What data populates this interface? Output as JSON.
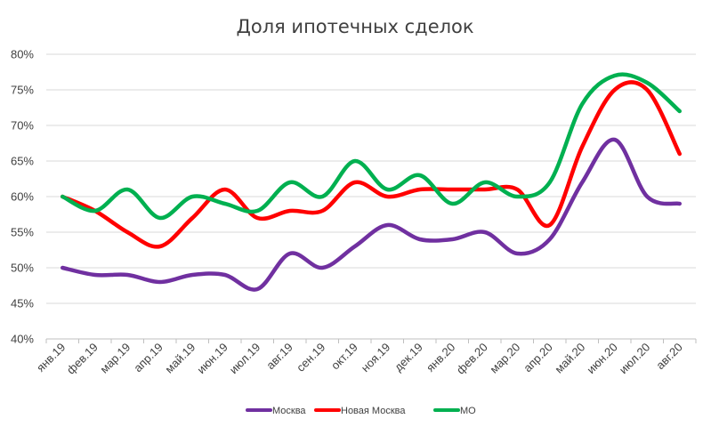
{
  "chart_data": {
    "type": "line",
    "title": "Доля ипотечных сделок",
    "xlabel": "",
    "ylabel": "",
    "categories": [
      "янв.19",
      "фев.19",
      "мар.19",
      "апр.19",
      "май.19",
      "июн.19",
      "июл.19",
      "авг.19",
      "сен.19",
      "окт.19",
      "ноя.19",
      "дек.19",
      "янв.20",
      "фев.20",
      "мар.20",
      "апр.20",
      "май.20",
      "июн.20",
      "июл.20",
      "авг.20"
    ],
    "ylim": [
      40,
      80
    ],
    "yticks": [
      40,
      45,
      50,
      55,
      60,
      65,
      70,
      75,
      80
    ],
    "ytick_labels": [
      "40%",
      "45%",
      "50%",
      "55%",
      "60%",
      "65%",
      "70%",
      "75%",
      "80%"
    ],
    "grid": true,
    "legend_position": "bottom",
    "smooth": true,
    "series": [
      {
        "name": "Москва",
        "color": "#7030a0",
        "values": [
          50,
          49,
          49,
          48,
          49,
          49,
          47,
          52,
          50,
          53,
          56,
          54,
          54,
          55,
          52,
          54,
          62,
          68,
          60,
          59
        ]
      },
      {
        "name": "Новая Москва",
        "color": "#ff0000",
        "values": [
          60,
          58,
          55,
          53,
          57,
          61,
          57,
          58,
          58,
          62,
          60,
          61,
          61,
          61,
          61,
          56,
          67,
          75,
          75,
          66
        ]
      },
      {
        "name": "МО",
        "color": "#00b050",
        "values": [
          60,
          58,
          61,
          57,
          60,
          59,
          58,
          62,
          60,
          65,
          61,
          63,
          59,
          62,
          60,
          62,
          73,
          77,
          76,
          72
        ]
      }
    ]
  }
}
